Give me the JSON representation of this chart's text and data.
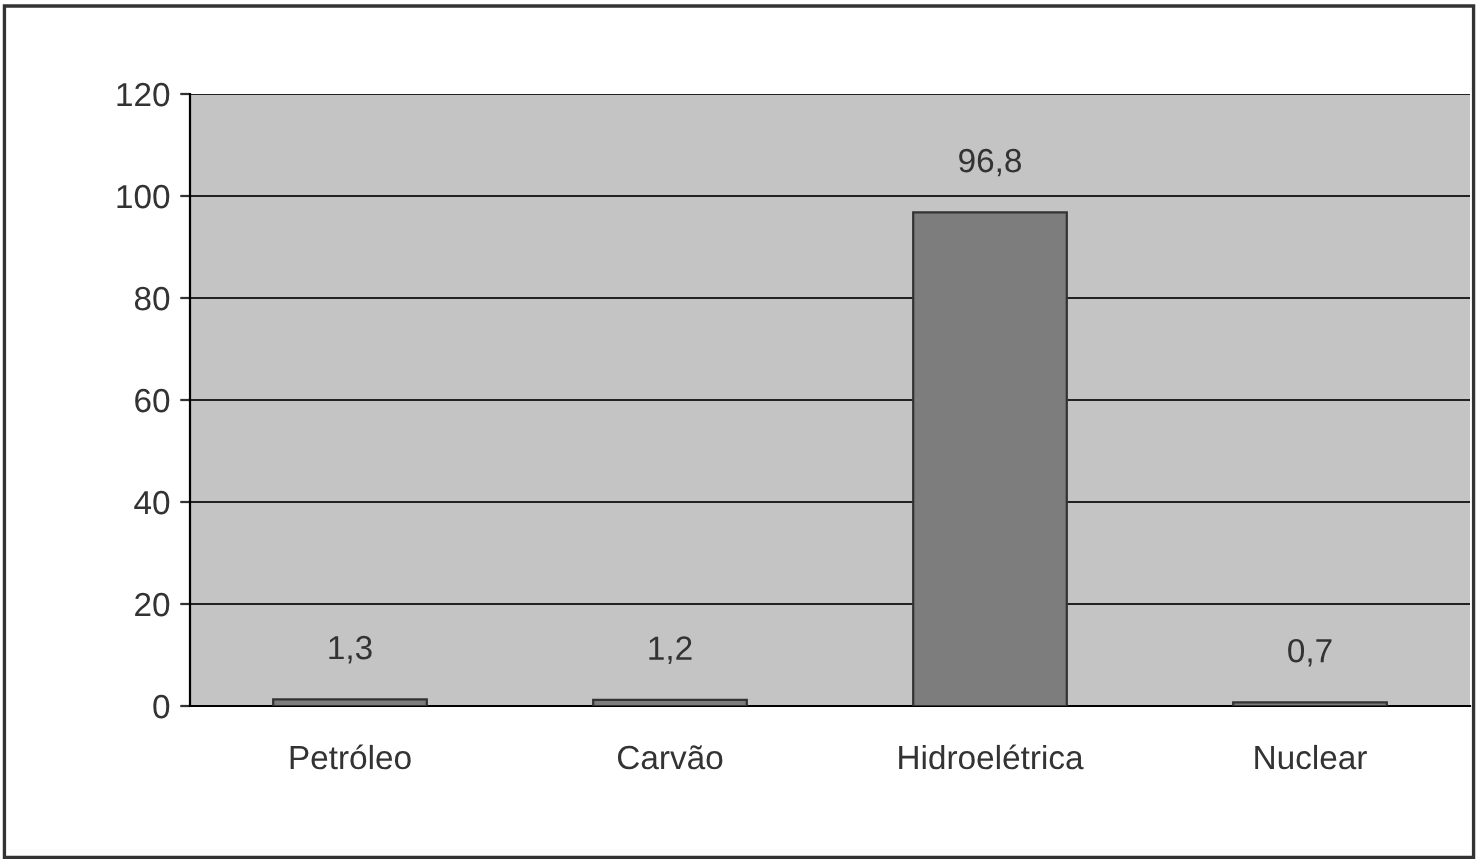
{
  "chart_data": {
    "type": "bar",
    "categories": [
      "Petróleo",
      "Carvão",
      "Hidroelétrica",
      "Nuclear"
    ],
    "values": [
      1.3,
      1.2,
      96.8,
      0.7
    ],
    "value_labels": [
      "1,3",
      "1,2",
      "96,8",
      "0,7"
    ],
    "color": "#7d7d7d",
    "ylim": [
      0,
      120
    ],
    "yticks": [
      0,
      20,
      40,
      60,
      80,
      100,
      120
    ],
    "grid": "y",
    "legend": false
  }
}
